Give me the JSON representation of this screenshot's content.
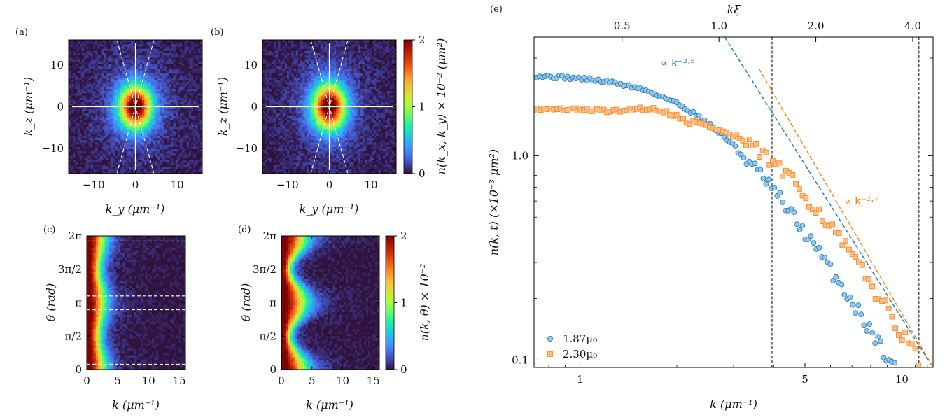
{
  "figure": {
    "panel_labels": [
      "(a)",
      "(b)",
      "(c)",
      "(d)",
      "(e)"
    ],
    "colormap": [
      "#30123b",
      "#4145ab",
      "#4675ed",
      "#39a2fc",
      "#1bcfd4",
      "#24eca6",
      "#61fc6c",
      "#a4fc3b",
      "#d1e834",
      "#f3c63a",
      "#fe9b2d",
      "#f36315",
      "#d93806",
      "#b11901",
      "#7a0402"
    ],
    "colors": {
      "series1": "#1f77b4",
      "series1_fill": "#8fc7ee",
      "series2": "#ff7f0e",
      "series2_fill": "#fbbf88"
    }
  },
  "chart_data": [
    {
      "id": "a",
      "type": "heatmap",
      "label": "(a)",
      "xlabel": "k_y (μm⁻¹)",
      "ylabel": "k_z (μm⁻¹)",
      "xlim": [
        -16,
        16
      ],
      "ylim": [
        -16,
        16
      ],
      "xticks": [
        -10,
        0,
        10
      ],
      "yticks": [
        -10,
        0,
        10
      ],
      "xticklabels": [
        "−10",
        "0",
        "10"
      ],
      "yticklabels": [
        "−10",
        "0",
        "10"
      ],
      "peak": {
        "center": [
          0,
          0
        ],
        "sigma_x": 2.6,
        "sigma_y": 3.4,
        "max": 2
      },
      "guides": {
        "solid": [
          "vertical k_y=0",
          "horizontal k_z=0"
        ],
        "dashed_slopes": [
          3.6,
          -3.6
        ]
      }
    },
    {
      "id": "b",
      "type": "heatmap",
      "label": "(b)",
      "xlabel": "k_y (μm⁻¹)",
      "ylabel": "k_z (μm⁻¹)",
      "xlim": [
        -16,
        16
      ],
      "ylim": [
        -16,
        16
      ],
      "xticks": [
        -10,
        0,
        10
      ],
      "yticks": [
        -10,
        0,
        10
      ],
      "xticklabels": [
        "−10",
        "0",
        "10"
      ],
      "yticklabels": [
        "−10",
        "0",
        "10"
      ],
      "peak": {
        "center": [
          0,
          0
        ],
        "sigma_x": 2.6,
        "sigma_y": 3.6,
        "max": 2
      },
      "guides": {
        "solid": [
          "vertical k_y=0",
          "horizontal k_z=0"
        ],
        "dashed_slopes": [
          3.6,
          -3.6
        ]
      },
      "colorbar": {
        "label": "n(k_x, k_y) × 10⁻² (μm²)",
        "range": [
          0,
          2
        ],
        "ticks": [
          0,
          1,
          2
        ],
        "ticklabels": [
          "0",
          "1",
          "2"
        ]
      }
    },
    {
      "id": "c",
      "type": "heatmap",
      "label": "(c)",
      "xlabel": "k (μm⁻¹)",
      "ylabel": "θ (rad)",
      "xlim": [
        0,
        16
      ],
      "ylim": [
        0,
        6.2832
      ],
      "xticks": [
        0,
        5,
        10,
        15
      ],
      "xticklabels": [
        "0",
        "5",
        "10",
        "15"
      ],
      "yticks": [
        0,
        1.5708,
        3.1416,
        4.7124,
        6.2832
      ],
      "yticklabels": [
        "0",
        "π/2",
        "π",
        "3π/2",
        "2π"
      ],
      "profile": {
        "k_width": 2.4,
        "modulation": 0.15,
        "max": 2
      },
      "dashed_theta": [
        0.25,
        2.81,
        3.46,
        6.04
      ]
    },
    {
      "id": "d",
      "type": "heatmap",
      "label": "(d)",
      "xlabel": "k (μm⁻¹)",
      "ylabel": "θ (rad)",
      "xlim": [
        0,
        16
      ],
      "ylim": [
        0,
        6.2832
      ],
      "xticks": [
        0,
        5,
        10,
        15
      ],
      "xticklabels": [
        "0",
        "5",
        "10",
        "15"
      ],
      "yticks": [
        0,
        1.5708,
        3.1416,
        4.7124,
        6.2832
      ],
      "yticklabels": [
        "0",
        "π/2",
        "π",
        "3π/2",
        "2π"
      ],
      "profile": {
        "k_width": 2.6,
        "modulation": 0.45,
        "max": 2
      },
      "colorbar": {
        "label": "n(k, θ) × 10⁻²",
        "range": [
          0,
          2
        ],
        "ticks": [
          0,
          1,
          2
        ],
        "ticklabels": [
          "0",
          "1",
          "2"
        ]
      }
    },
    {
      "id": "e",
      "type": "scatter",
      "label": "(e)",
      "xlabel": "k (μm⁻¹)",
      "ylabel": "n(k, t) (×10⁻³ μm²)",
      "top_xlabel": "kξ",
      "xscale": "log",
      "yscale": "log",
      "xlim": [
        0.72,
        12.5
      ],
      "ylim": [
        0.092,
        3.8
      ],
      "xticks": [
        1,
        5,
        10
      ],
      "xticklabels": [
        "1",
        "5",
        "10"
      ],
      "yticks": [
        0.1,
        1.0
      ],
      "yticklabels": [
        "0.1",
        "1.0"
      ],
      "top_xticks_kxi": [
        0.5,
        1.0,
        2.0,
        4.0
      ],
      "top_xticklabels": [
        "0.5",
        "1.0",
        "2.0",
        "4.0"
      ],
      "k_to_kxi_factor": 0.37,
      "vlines_k": [
        3.95,
        11.3
      ],
      "legend": {
        "position": "lower-left"
      },
      "series": [
        {
          "name": "1.87μ₀",
          "marker": "circle",
          "plateau": 2.5,
          "knee_k": 2.55,
          "slope": -2.5,
          "k_start": 0.72,
          "k_end": 11.6,
          "n_points": 140
        },
        {
          "name": "2.30μ₀",
          "marker": "square",
          "plateau": 1.7,
          "knee_k": 4.0,
          "slope": -2.7,
          "k_start": 0.72,
          "k_end": 12.1,
          "n_points": 120
        }
      ],
      "fits": [
        {
          "label": "∝ k⁻²·⁵",
          "slope": -2.5,
          "anchor_k": 4.0,
          "anchor_n": 1.58,
          "k_range": [
            2.75,
            12.3
          ]
        },
        {
          "label": "∝ k⁻²·⁷",
          "slope": -2.7,
          "anchor_k": 4.0,
          "anchor_n": 2.0,
          "k_range": [
            3.6,
            12.5
          ]
        }
      ],
      "annotations": [
        "∝ k⁻²·⁵",
        "∝ k⁻²·⁷"
      ]
    }
  ]
}
